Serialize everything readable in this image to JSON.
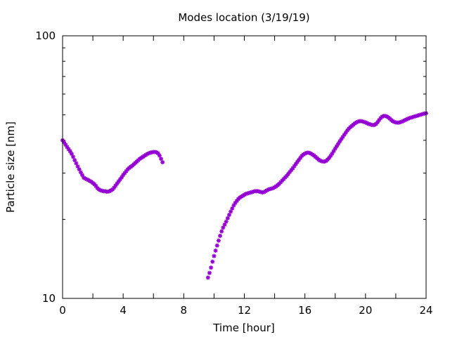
{
  "chart_data": {
    "type": "scatter",
    "title": "Modes location (3/19/19)",
    "xlabel": "Time [hour]",
    "ylabel": "Particle size [nm]",
    "xlim": [
      0,
      24
    ],
    "ylim": [
      10,
      100
    ],
    "yscale": "log",
    "x_ticks": [
      0,
      4,
      8,
      12,
      16,
      20,
      24
    ],
    "y_ticks": [
      10,
      100
    ],
    "grid": false,
    "legend": "none",
    "marker_color": "#9400d3",
    "series": [
      {
        "name": "",
        "points": [
          [
            0.0,
            40.0
          ],
          [
            0.1,
            39.3
          ],
          [
            0.2,
            38.5
          ],
          [
            0.3,
            37.7
          ],
          [
            0.4,
            37.0
          ],
          [
            0.5,
            36.3
          ],
          [
            0.6,
            35.5
          ],
          [
            0.7,
            34.6
          ],
          [
            0.8,
            33.6
          ],
          [
            0.9,
            32.7
          ],
          [
            1.0,
            31.8
          ],
          [
            1.1,
            31.0
          ],
          [
            1.2,
            30.2
          ],
          [
            1.3,
            29.5
          ],
          [
            1.4,
            28.8
          ],
          [
            1.5,
            28.6
          ],
          [
            1.6,
            28.4
          ],
          [
            1.7,
            28.2
          ],
          [
            1.8,
            28.0
          ],
          [
            1.9,
            27.8
          ],
          [
            2.0,
            27.5
          ],
          [
            2.1,
            27.2
          ],
          [
            2.2,
            26.8
          ],
          [
            2.3,
            26.3
          ],
          [
            2.4,
            26.0
          ],
          [
            2.5,
            25.8
          ],
          [
            2.6,
            25.7
          ],
          [
            2.7,
            25.6
          ],
          [
            2.8,
            25.6
          ],
          [
            2.9,
            25.5
          ],
          [
            3.0,
            25.5
          ],
          [
            3.1,
            25.6
          ],
          [
            3.2,
            25.8
          ],
          [
            3.3,
            26.0
          ],
          [
            3.4,
            26.4
          ],
          [
            3.5,
            26.9
          ],
          [
            3.6,
            27.4
          ],
          [
            3.7,
            27.9
          ],
          [
            3.8,
            28.4
          ],
          [
            3.9,
            28.9
          ],
          [
            4.0,
            29.5
          ],
          [
            4.1,
            30.0
          ],
          [
            4.2,
            30.5
          ],
          [
            4.3,
            31.0
          ],
          [
            4.4,
            31.4
          ],
          [
            4.5,
            31.7
          ],
          [
            4.6,
            32.0
          ],
          [
            4.7,
            32.4
          ],
          [
            4.8,
            32.8
          ],
          [
            4.9,
            33.2
          ],
          [
            5.0,
            33.6
          ],
          [
            5.1,
            34.0
          ],
          [
            5.2,
            34.3
          ],
          [
            5.3,
            34.6
          ],
          [
            5.4,
            34.9
          ],
          [
            5.5,
            35.2
          ],
          [
            5.6,
            35.5
          ],
          [
            5.7,
            35.7
          ],
          [
            5.8,
            35.9
          ],
          [
            5.9,
            36.0
          ],
          [
            6.0,
            36.1
          ],
          [
            6.1,
            36.1
          ],
          [
            6.2,
            36.0
          ],
          [
            6.3,
            35.7
          ],
          [
            6.4,
            35.0
          ],
          [
            6.5,
            34.0
          ],
          [
            6.6,
            33.0
          ],
          [
            9.6,
            12.0
          ],
          [
            9.7,
            12.5
          ],
          [
            9.8,
            13.1
          ],
          [
            9.9,
            13.8
          ],
          [
            10.0,
            14.5
          ],
          [
            10.1,
            15.2
          ],
          [
            10.2,
            15.9
          ],
          [
            10.3,
            16.6
          ],
          [
            10.4,
            17.3
          ],
          [
            10.5,
            18.0
          ],
          [
            10.6,
            18.6
          ],
          [
            10.7,
            19.1
          ],
          [
            10.8,
            19.6
          ],
          [
            10.9,
            20.2
          ],
          [
            11.0,
            20.8
          ],
          [
            11.1,
            21.4
          ],
          [
            11.2,
            22.0
          ],
          [
            11.3,
            22.6
          ],
          [
            11.4,
            23.1
          ],
          [
            11.5,
            23.5
          ],
          [
            11.6,
            23.9
          ],
          [
            11.7,
            24.2
          ],
          [
            11.8,
            24.4
          ],
          [
            11.9,
            24.6
          ],
          [
            12.0,
            24.8
          ],
          [
            12.1,
            25.0
          ],
          [
            12.2,
            25.1
          ],
          [
            12.3,
            25.2
          ],
          [
            12.4,
            25.3
          ],
          [
            12.5,
            25.4
          ],
          [
            12.6,
            25.5
          ],
          [
            12.7,
            25.6
          ],
          [
            12.8,
            25.6
          ],
          [
            12.9,
            25.6
          ],
          [
            13.0,
            25.5
          ],
          [
            13.1,
            25.4
          ],
          [
            13.2,
            25.3
          ],
          [
            13.3,
            25.4
          ],
          [
            13.4,
            25.6
          ],
          [
            13.5,
            25.8
          ],
          [
            13.6,
            26.0
          ],
          [
            13.7,
            26.1
          ],
          [
            13.8,
            26.2
          ],
          [
            13.9,
            26.3
          ],
          [
            14.0,
            26.5
          ],
          [
            14.1,
            26.7
          ],
          [
            14.2,
            27.0
          ],
          [
            14.3,
            27.3
          ],
          [
            14.4,
            27.7
          ],
          [
            14.5,
            28.1
          ],
          [
            14.6,
            28.5
          ],
          [
            14.7,
            28.9
          ],
          [
            14.8,
            29.3
          ],
          [
            14.9,
            29.8
          ],
          [
            15.0,
            30.3
          ],
          [
            15.1,
            30.8
          ],
          [
            15.2,
            31.3
          ],
          [
            15.3,
            31.9
          ],
          [
            15.4,
            32.5
          ],
          [
            15.5,
            33.1
          ],
          [
            15.6,
            33.7
          ],
          [
            15.7,
            34.3
          ],
          [
            15.8,
            34.9
          ],
          [
            15.9,
            35.3
          ],
          [
            16.0,
            35.6
          ],
          [
            16.1,
            35.8
          ],
          [
            16.2,
            35.9
          ],
          [
            16.3,
            35.8
          ],
          [
            16.4,
            35.6
          ],
          [
            16.5,
            35.3
          ],
          [
            16.6,
            35.0
          ],
          [
            16.7,
            34.6
          ],
          [
            16.8,
            34.2
          ],
          [
            16.9,
            33.8
          ],
          [
            17.0,
            33.5
          ],
          [
            17.1,
            33.3
          ],
          [
            17.2,
            33.2
          ],
          [
            17.3,
            33.2
          ],
          [
            17.4,
            33.4
          ],
          [
            17.5,
            33.8
          ],
          [
            17.6,
            34.3
          ],
          [
            17.7,
            34.9
          ],
          [
            17.8,
            35.6
          ],
          [
            17.9,
            36.4
          ],
          [
            18.0,
            37.2
          ],
          [
            18.1,
            38.0
          ],
          [
            18.2,
            38.8
          ],
          [
            18.3,
            39.6
          ],
          [
            18.4,
            40.4
          ],
          [
            18.5,
            41.2
          ],
          [
            18.6,
            42.0
          ],
          [
            18.7,
            42.8
          ],
          [
            18.8,
            43.6
          ],
          [
            18.9,
            44.3
          ],
          [
            19.0,
            44.9
          ],
          [
            19.1,
            45.4
          ],
          [
            19.2,
            45.9
          ],
          [
            19.3,
            46.4
          ],
          [
            19.4,
            46.8
          ],
          [
            19.5,
            47.1
          ],
          [
            19.6,
            47.3
          ],
          [
            19.7,
            47.3
          ],
          [
            19.8,
            47.2
          ],
          [
            19.9,
            47.0
          ],
          [
            20.0,
            46.8
          ],
          [
            20.1,
            46.5
          ],
          [
            20.2,
            46.2
          ],
          [
            20.3,
            46.0
          ],
          [
            20.4,
            45.8
          ],
          [
            20.5,
            45.7
          ],
          [
            20.6,
            45.8
          ],
          [
            20.7,
            46.2
          ],
          [
            20.8,
            46.9
          ],
          [
            20.9,
            47.8
          ],
          [
            21.0,
            48.6
          ],
          [
            21.1,
            49.2
          ],
          [
            21.2,
            49.5
          ],
          [
            21.3,
            49.5
          ],
          [
            21.4,
            49.3
          ],
          [
            21.5,
            48.9
          ],
          [
            21.6,
            48.4
          ],
          [
            21.7,
            47.8
          ],
          [
            21.8,
            47.3
          ],
          [
            21.9,
            47.0
          ],
          [
            22.0,
            46.8
          ],
          [
            22.1,
            46.7
          ],
          [
            22.2,
            46.7
          ],
          [
            22.3,
            46.9
          ],
          [
            22.4,
            47.1
          ],
          [
            22.5,
            47.4
          ],
          [
            22.6,
            47.7
          ],
          [
            22.7,
            48.0
          ],
          [
            22.8,
            48.3
          ],
          [
            22.9,
            48.6
          ],
          [
            23.0,
            48.8
          ],
          [
            23.1,
            49.0
          ],
          [
            23.2,
            49.2
          ],
          [
            23.3,
            49.4
          ],
          [
            23.4,
            49.6
          ],
          [
            23.5,
            49.8
          ],
          [
            23.6,
            50.0
          ],
          [
            23.7,
            50.2
          ],
          [
            23.8,
            50.4
          ],
          [
            23.9,
            50.6
          ],
          [
            24.0,
            50.7
          ]
        ]
      }
    ]
  }
}
